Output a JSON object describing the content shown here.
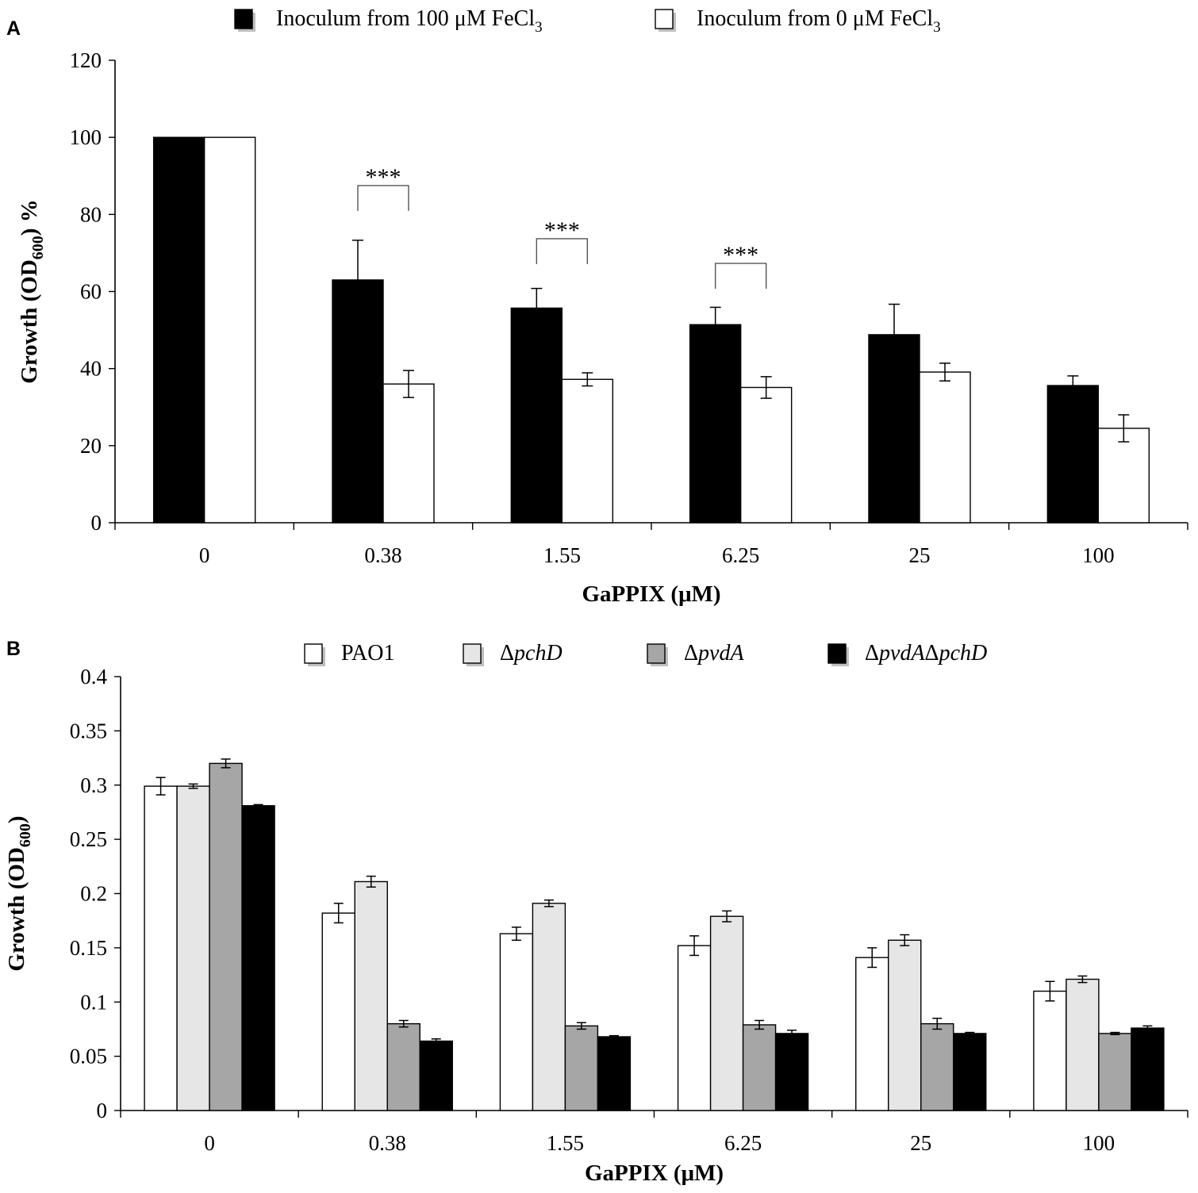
{
  "chart_data": [
    {
      "panel": "A",
      "type": "bar",
      "xlabel": "GaPPIX (μM)",
      "ylabel_main": "Growth (OD",
      "ylabel_sub": "600",
      "ylabel_tail": ") %",
      "categories": [
        "0",
        "0.38",
        "1.55",
        "6.25",
        "25",
        "100"
      ],
      "ylim": [
        0,
        120
      ],
      "yticks": [
        "0",
        "20",
        "40",
        "60",
        "80",
        "100",
        "120"
      ],
      "grid": false,
      "legend_position": "top",
      "series": [
        {
          "name_main": "Inoculum from 100 μM FeCl",
          "name_sub": "3",
          "color": "#000000",
          "values": [
            100,
            63,
            55.7,
            51.4,
            48.8,
            35.6
          ],
          "errors": [
            0,
            10.3,
            5.1,
            4.5,
            7.9,
            2.5
          ]
        },
        {
          "name_main": "Inoculum from 0 μM FeCl",
          "name_sub": "3",
          "color": "#ffffff",
          "values": [
            100,
            36,
            37.2,
            35.1,
            39.1,
            24.5
          ],
          "errors": [
            0,
            3.5,
            1.7,
            2.8,
            2.3,
            3.5
          ]
        }
      ],
      "annotations": [
        {
          "label": "***",
          "category_index": 1,
          "bracket_y": 87.5
        },
        {
          "label": "***",
          "category_index": 2,
          "bracket_y": 73.7
        },
        {
          "label": "***",
          "category_index": 3,
          "bracket_y": 67.3
        }
      ]
    },
    {
      "panel": "B",
      "type": "bar",
      "xlabel": "GaPPIX (μM)",
      "ylabel_main": "Growth (OD",
      "ylabel_sub": "600",
      "ylabel_tail": ")",
      "categories": [
        "0",
        "0.38",
        "1.55",
        "6.25",
        "25",
        "100"
      ],
      "ylim": [
        0,
        0.4
      ],
      "yticks": [
        "0",
        "0.05",
        "0.1",
        "0.15",
        "0.2",
        "0.25",
        "0.3",
        "0.35",
        "0.4"
      ],
      "grid": false,
      "legend_position": "top",
      "series": [
        {
          "name_parts": [
            {
              "text": "PAO1",
              "italic": false
            }
          ],
          "color": "#ffffff",
          "values": [
            0.299,
            0.182,
            0.163,
            0.152,
            0.141,
            0.11
          ],
          "errors": [
            0.008,
            0.009,
            0.006,
            0.009,
            0.009,
            0.009
          ]
        },
        {
          "name_parts": [
            {
              "text": "Δ",
              "italic": false
            },
            {
              "text": "pchD",
              "italic": true
            }
          ],
          "color": "#e6e6e6",
          "values": [
            0.299,
            0.211,
            0.191,
            0.179,
            0.157,
            0.121
          ],
          "errors": [
            0.002,
            0.005,
            0.003,
            0.005,
            0.005,
            0.003
          ]
        },
        {
          "name_parts": [
            {
              "text": "Δ",
              "italic": false
            },
            {
              "text": "pvdA",
              "italic": true
            }
          ],
          "color": "#a6a6a6",
          "values": [
            0.32,
            0.08,
            0.078,
            0.079,
            0.08,
            0.071
          ],
          "errors": [
            0.004,
            0.003,
            0.003,
            0.004,
            0.005,
            0.001
          ]
        },
        {
          "name_parts": [
            {
              "text": "Δ",
              "italic": false
            },
            {
              "text": "pvdA",
              "italic": true
            },
            {
              "text": "Δ",
              "italic": false
            },
            {
              "text": "pchD",
              "italic": true
            }
          ],
          "color": "#000000",
          "values": [
            0.281,
            0.064,
            0.068,
            0.071,
            0.071,
            0.076
          ],
          "errors": [
            0.001,
            0.002,
            0.001,
            0.003,
            0.001,
            0.002
          ]
        }
      ]
    }
  ]
}
